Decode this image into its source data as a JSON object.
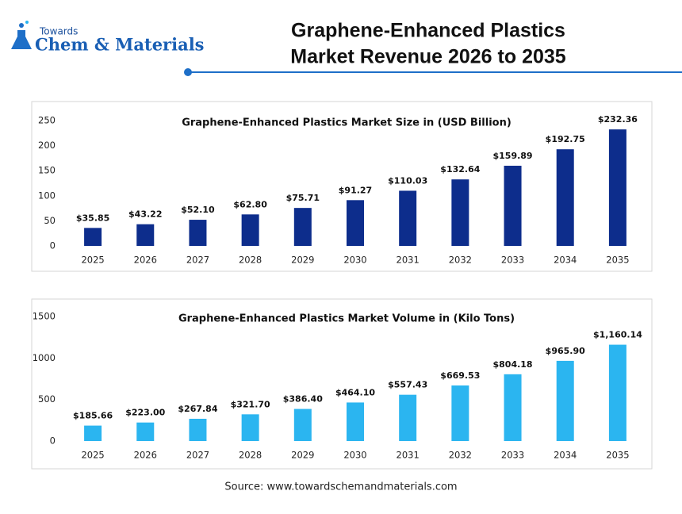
{
  "header": {
    "logo_small": "Towards",
    "logo_main": "Chem & Materials",
    "title_lines": [
      "Graphene-Enhanced Plastics",
      "Market Revenue 2026 to 2035"
    ]
  },
  "chart_data": [
    {
      "type": "bar",
      "title": "Graphene-Enhanced Plastics Market Size in (USD Billion)",
      "categories": [
        "2025",
        "2026",
        "2027",
        "2028",
        "2029",
        "2030",
        "2031",
        "2032",
        "2033",
        "2034",
        "2035"
      ],
      "values": [
        35.85,
        43.22,
        52.1,
        62.8,
        75.71,
        91.27,
        110.03,
        132.64,
        159.89,
        192.75,
        232.36
      ],
      "value_labels": [
        "$35.85",
        "$43.22",
        "$52.10",
        "$62.80",
        "$75.71",
        "$91.27",
        "$110.03",
        "$132.64",
        "$159.89",
        "$192.75",
        "$232.36"
      ],
      "color": "#0d2d8c",
      "ylim": [
        0,
        250
      ],
      "yticks": [
        0,
        50,
        100,
        150,
        200,
        250
      ],
      "grid": false
    },
    {
      "type": "bar",
      "title": "Graphene-Enhanced Plastics Market Volume in (Kilo Tons)",
      "categories": [
        "2025",
        "2026",
        "2027",
        "2028",
        "2029",
        "2030",
        "2031",
        "2032",
        "2033",
        "2034",
        "2035"
      ],
      "values": [
        185.66,
        223.0,
        267.84,
        321.7,
        386.4,
        464.1,
        557.43,
        669.53,
        804.18,
        965.9,
        1160.14
      ],
      "value_labels": [
        "$185.66",
        "$223.00",
        "$267.84",
        "$321.70",
        "$386.40",
        "$464.10",
        "$557.43",
        "$669.53",
        "$804.18",
        "$965.90",
        "$1,160.14"
      ],
      "color": "#2bb5f0",
      "ylim": [
        0,
        1500
      ],
      "yticks": [
        0,
        500,
        1000,
        1500
      ],
      "grid": false
    }
  ],
  "source": "Source: www.towardschemandmaterials.com"
}
